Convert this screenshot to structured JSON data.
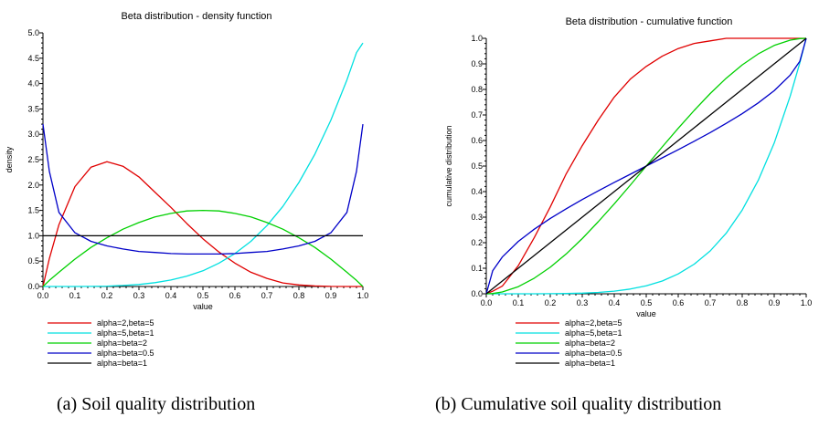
{
  "chart_data": [
    {
      "type": "line",
      "title": "Beta distribution - density function",
      "xlabel": "value",
      "ylabel": "density",
      "xlim": [
        0,
        1
      ],
      "ylim": [
        0,
        5
      ],
      "xticks": [
        "0.0",
        "0.1",
        "0.2",
        "0.3",
        "0.4",
        "0.5",
        "0.6",
        "0.7",
        "0.8",
        "0.9",
        "1.0"
      ],
      "yticks": [
        "0.0",
        "0.5",
        "1.0",
        "1.5",
        "2.0",
        "2.5",
        "3.0",
        "3.5",
        "4.0",
        "4.5",
        "5.0"
      ],
      "grid": false,
      "legend_position": "bottom-left",
      "x": [
        0.0,
        0.02,
        0.05,
        0.1,
        0.15,
        0.2,
        0.25,
        0.3,
        0.35,
        0.4,
        0.45,
        0.5,
        0.55,
        0.6,
        0.65,
        0.7,
        0.75,
        0.8,
        0.85,
        0.9,
        0.95,
        0.98,
        1.0
      ],
      "series": [
        {
          "name": "alpha=2,beta=5",
          "color": "#e00000",
          "values": [
            0.0,
            0.55,
            1.22,
            1.97,
            2.35,
            2.46,
            2.37,
            2.16,
            1.86,
            1.56,
            1.24,
            0.94,
            0.68,
            0.46,
            0.28,
            0.16,
            0.07,
            0.03,
            0.01,
            0.002,
            0.0,
            0.0,
            0.0
          ]
        },
        {
          "name": "alpha=5,beta=1",
          "color": "#00e0e0",
          "values": [
            0.0,
            0.0,
            0.0,
            0.0005,
            0.0025,
            0.008,
            0.02,
            0.04,
            0.075,
            0.128,
            0.205,
            0.31,
            0.46,
            0.65,
            0.89,
            1.2,
            1.58,
            2.05,
            2.61,
            3.28,
            4.07,
            4.61,
            4.8
          ]
        },
        {
          "name": "alpha=beta=2",
          "color": "#00d000",
          "values": [
            0.0,
            0.12,
            0.28,
            0.54,
            0.77,
            0.96,
            1.13,
            1.26,
            1.37,
            1.44,
            1.49,
            1.5,
            1.49,
            1.44,
            1.37,
            1.26,
            1.13,
            0.96,
            0.77,
            0.54,
            0.28,
            0.12,
            0.0
          ]
        },
        {
          "name": "alpha=beta=0.5",
          "color": "#0000c8",
          "values": [
            3.2,
            2.27,
            1.46,
            1.06,
            0.89,
            0.8,
            0.74,
            0.69,
            0.67,
            0.65,
            0.64,
            0.64,
            0.64,
            0.65,
            0.67,
            0.69,
            0.74,
            0.8,
            0.89,
            1.06,
            1.46,
            2.27,
            3.2
          ]
        },
        {
          "name": "alpha=beta=1",
          "color": "#000000",
          "values": [
            1,
            1,
            1,
            1,
            1,
            1,
            1,
            1,
            1,
            1,
            1,
            1,
            1,
            1,
            1,
            1,
            1,
            1,
            1,
            1,
            1,
            1,
            1
          ]
        }
      ]
    },
    {
      "type": "line",
      "title": "Beta distribution - cumulative function",
      "xlabel": "value",
      "ylabel": "cumulative distribution",
      "xlim": [
        0,
        1
      ],
      "ylim": [
        0,
        1
      ],
      "xticks": [
        "0.0",
        "0.1",
        "0.2",
        "0.3",
        "0.4",
        "0.5",
        "0.6",
        "0.7",
        "0.8",
        "0.9",
        "1.0"
      ],
      "yticks": [
        "0.0",
        "0.1",
        "0.2",
        "0.3",
        "0.4",
        "0.5",
        "0.6",
        "0.7",
        "0.8",
        "0.9",
        "1.0"
      ],
      "grid": false,
      "legend_position": "bottom-left",
      "x": [
        0.0,
        0.02,
        0.05,
        0.1,
        0.15,
        0.2,
        0.25,
        0.3,
        0.35,
        0.4,
        0.45,
        0.5,
        0.55,
        0.6,
        0.65,
        0.7,
        0.75,
        0.8,
        0.85,
        0.9,
        0.95,
        0.98,
        1.0
      ],
      "series": [
        {
          "name": "alpha=2,beta=5",
          "color": "#e00000",
          "values": [
            0.0,
            0.01,
            0.03,
            0.11,
            0.22,
            0.34,
            0.47,
            0.58,
            0.68,
            0.77,
            0.84,
            0.89,
            0.93,
            0.96,
            0.98,
            0.99,
            1.0,
            1.0,
            1.0,
            1.0,
            1.0,
            1.0,
            1.0
          ]
        },
        {
          "name": "alpha=5,beta=1",
          "color": "#00e0e0",
          "values": [
            0.0,
            0.0,
            0.0,
            0.0,
            0.0001,
            0.0003,
            0.001,
            0.0024,
            0.0053,
            0.0102,
            0.0185,
            0.031,
            0.05,
            0.078,
            0.116,
            0.168,
            0.237,
            0.328,
            0.444,
            0.59,
            0.774,
            0.904,
            1.0
          ]
        },
        {
          "name": "alpha=beta=2",
          "color": "#00d000",
          "values": [
            0.0,
            0.001,
            0.007,
            0.028,
            0.061,
            0.104,
            0.156,
            0.216,
            0.282,
            0.352,
            0.425,
            0.5,
            0.575,
            0.648,
            0.718,
            0.784,
            0.844,
            0.896,
            0.939,
            0.972,
            0.993,
            0.999,
            1.0
          ]
        },
        {
          "name": "alpha=beta=0.5",
          "color": "#0000c8",
          "values": [
            0.0,
            0.09,
            0.144,
            0.205,
            0.253,
            0.295,
            0.333,
            0.369,
            0.403,
            0.436,
            0.468,
            0.5,
            0.532,
            0.564,
            0.597,
            0.631,
            0.667,
            0.705,
            0.747,
            0.795,
            0.856,
            0.91,
            1.0
          ]
        },
        {
          "name": "alpha=beta=1",
          "color": "#000000",
          "values": [
            0.0,
            0.02,
            0.05,
            0.1,
            0.15,
            0.2,
            0.25,
            0.3,
            0.35,
            0.4,
            0.45,
            0.5,
            0.55,
            0.6,
            0.65,
            0.7,
            0.75,
            0.8,
            0.85,
            0.9,
            0.95,
            0.98,
            1.0
          ]
        }
      ]
    }
  ],
  "captions": {
    "a": "(a)  Soil quality distribution",
    "b": "(b)  Cumulative soil quality distribution"
  }
}
